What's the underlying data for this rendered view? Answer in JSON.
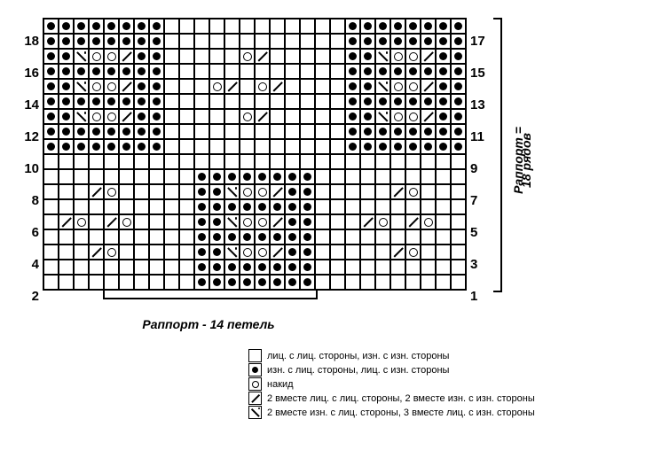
{
  "chart": {
    "rows": 18,
    "cols": 28,
    "cell_size": 17,
    "left_row_labels": [
      "2",
      "",
      "4",
      "",
      "6",
      "",
      "8",
      "",
      "10",
      "",
      "12",
      "",
      "14",
      "",
      "16",
      "",
      "18",
      ""
    ],
    "right_row_labels": [
      "1",
      "",
      "3",
      "",
      "5",
      "",
      "7",
      "",
      "9",
      "",
      "11",
      "",
      "13",
      "",
      "15",
      "",
      "17",
      ""
    ],
    "symbols": {
      "": "",
      "p": "sym-dot",
      "o": "sym-yo",
      "/": "sym-k2r",
      "\\": "sym-k2l",
      "d": "sym-k2l-dot"
    },
    "grid": [
      [
        "",
        "",
        "",
        "",
        "",
        "",
        "",
        "",
        "",
        "",
        "p",
        "p",
        "p",
        "p",
        "p",
        "p",
        "p",
        "p",
        "",
        "",
        "",
        "",
        "",
        "",
        "",
        "",
        "",
        ""
      ],
      [
        "",
        "",
        "",
        "",
        "",
        "",
        "",
        "",
        "",
        "",
        "p",
        "p",
        "p",
        "p",
        "p",
        "p",
        "p",
        "p",
        "",
        "",
        "",
        "",
        "",
        "",
        "",
        "",
        "",
        ""
      ],
      [
        "",
        "",
        "",
        "/",
        "o",
        "",
        "",
        "",
        "",
        "",
        "p",
        "p",
        "d",
        "o",
        "o",
        "/",
        "p",
        "p",
        "",
        "",
        "",
        "",
        "",
        "/",
        "o",
        "",
        "",
        ""
      ],
      [
        "",
        "",
        "",
        "",
        "",
        "",
        "",
        "",
        "",
        "",
        "p",
        "p",
        "p",
        "p",
        "p",
        "p",
        "p",
        "p",
        "",
        "",
        "",
        "",
        "",
        "",
        "",
        "",
        "",
        ""
      ],
      [
        "",
        "/",
        "o",
        "",
        "/",
        "o",
        "",
        "",
        "",
        "",
        "p",
        "p",
        "d",
        "o",
        "o",
        "/",
        "p",
        "p",
        "",
        "",
        "",
        "/",
        "o",
        "",
        "/",
        "o",
        "",
        ""
      ],
      [
        "",
        "",
        "",
        "",
        "",
        "",
        "",
        "",
        "",
        "",
        "p",
        "p",
        "p",
        "p",
        "p",
        "p",
        "p",
        "p",
        "",
        "",
        "",
        "",
        "",
        "",
        "",
        "",
        "",
        ""
      ],
      [
        "",
        "",
        "",
        "/",
        "o",
        "",
        "",
        "",
        "",
        "",
        "p",
        "p",
        "d",
        "o",
        "o",
        "/",
        "p",
        "p",
        "",
        "",
        "",
        "",
        "",
        "/",
        "o",
        "",
        "",
        ""
      ],
      [
        "",
        "",
        "",
        "",
        "",
        "",
        "",
        "",
        "",
        "",
        "p",
        "p",
        "p",
        "p",
        "p",
        "p",
        "p",
        "p",
        "",
        "",
        "",
        "",
        "",
        "",
        "",
        "",
        "",
        ""
      ],
      [
        "",
        "",
        "",
        "",
        "",
        "",
        "",
        "",
        "",
        "",
        "",
        "",
        "",
        "",
        "",
        "",
        "",
        "",
        "",
        "",
        "",
        "",
        "",
        "",
        "",
        "",
        "",
        ""
      ],
      [
        "p",
        "p",
        "p",
        "p",
        "p",
        "p",
        "p",
        "p",
        "",
        "",
        "",
        "",
        "",
        "",
        "",
        "",
        "",
        "",
        "",
        "",
        "p",
        "p",
        "p",
        "p",
        "p",
        "p",
        "p",
        "p"
      ],
      [
        "p",
        "p",
        "p",
        "p",
        "p",
        "p",
        "p",
        "p",
        "",
        "",
        "",
        "",
        "",
        "",
        "",
        "",
        "",
        "",
        "",
        "",
        "p",
        "p",
        "p",
        "p",
        "p",
        "p",
        "p",
        "p"
      ],
      [
        "p",
        "p",
        "d",
        "o",
        "o",
        "/",
        "p",
        "p",
        "",
        "",
        "",
        "",
        "",
        "o",
        "/",
        "",
        "",
        "",
        "",
        "",
        "p",
        "p",
        "d",
        "o",
        "o",
        "/",
        "p",
        "p"
      ],
      [
        "p",
        "p",
        "p",
        "p",
        "p",
        "p",
        "p",
        "p",
        "",
        "",
        "",
        "",
        "",
        "",
        "",
        "",
        "",
        "",
        "",
        "",
        "p",
        "p",
        "p",
        "p",
        "p",
        "p",
        "p",
        "p"
      ],
      [
        "p",
        "p",
        "d",
        "o",
        "o",
        "/",
        "p",
        "p",
        "",
        "",
        "",
        "o",
        "/",
        "",
        "o",
        "/",
        "",
        "",
        "",
        "",
        "p",
        "p",
        "d",
        "o",
        "o",
        "/",
        "p",
        "p"
      ],
      [
        "p",
        "p",
        "p",
        "p",
        "p",
        "p",
        "p",
        "p",
        "",
        "",
        "",
        "",
        "",
        "",
        "",
        "",
        "",
        "",
        "",
        "",
        "p",
        "p",
        "p",
        "p",
        "p",
        "p",
        "p",
        "p"
      ],
      [
        "p",
        "p",
        "d",
        "o",
        "o",
        "/",
        "p",
        "p",
        "",
        "",
        "",
        "",
        "",
        "o",
        "/",
        "",
        "",
        "",
        "",
        "",
        "p",
        "p",
        "d",
        "o",
        "o",
        "/",
        "p",
        "p"
      ],
      [
        "p",
        "p",
        "p",
        "p",
        "p",
        "p",
        "p",
        "p",
        "",
        "",
        "",
        "",
        "",
        "",
        "",
        "",
        "",
        "",
        "",
        "",
        "p",
        "p",
        "p",
        "p",
        "p",
        "p",
        "p",
        "p"
      ],
      [
        "p",
        "p",
        "p",
        "p",
        "p",
        "p",
        "p",
        "p",
        "",
        "",
        "",
        "",
        "",
        "",
        "",
        "",
        "",
        "",
        "",
        "",
        "p",
        "p",
        "p",
        "p",
        "p",
        "p",
        "p",
        "p"
      ]
    ],
    "rapport_cols": {
      "start": 4,
      "end": 17,
      "label": "Раппорт - 14 петель"
    },
    "rapport_rows": {
      "label1": "Раппорт =",
      "label2": "18 рядов"
    }
  },
  "legend": [
    {
      "sym": "",
      "text": "лиц. с лиц. стороны, изн. с изн. стороны"
    },
    {
      "sym": "dot",
      "text": "изн. с лиц. стороны, лиц. с изн. стороны"
    },
    {
      "sym": "yo",
      "text": "накид"
    },
    {
      "sym": "k2r",
      "text": "2 вместе лиц. с лиц. стороны, 2 вместе изн. с изн. стороны"
    },
    {
      "sym": "k2ld",
      "text": "2 вместе изн. с лиц. стороны, 3 вместе лиц. с изн. стороны"
    }
  ]
}
